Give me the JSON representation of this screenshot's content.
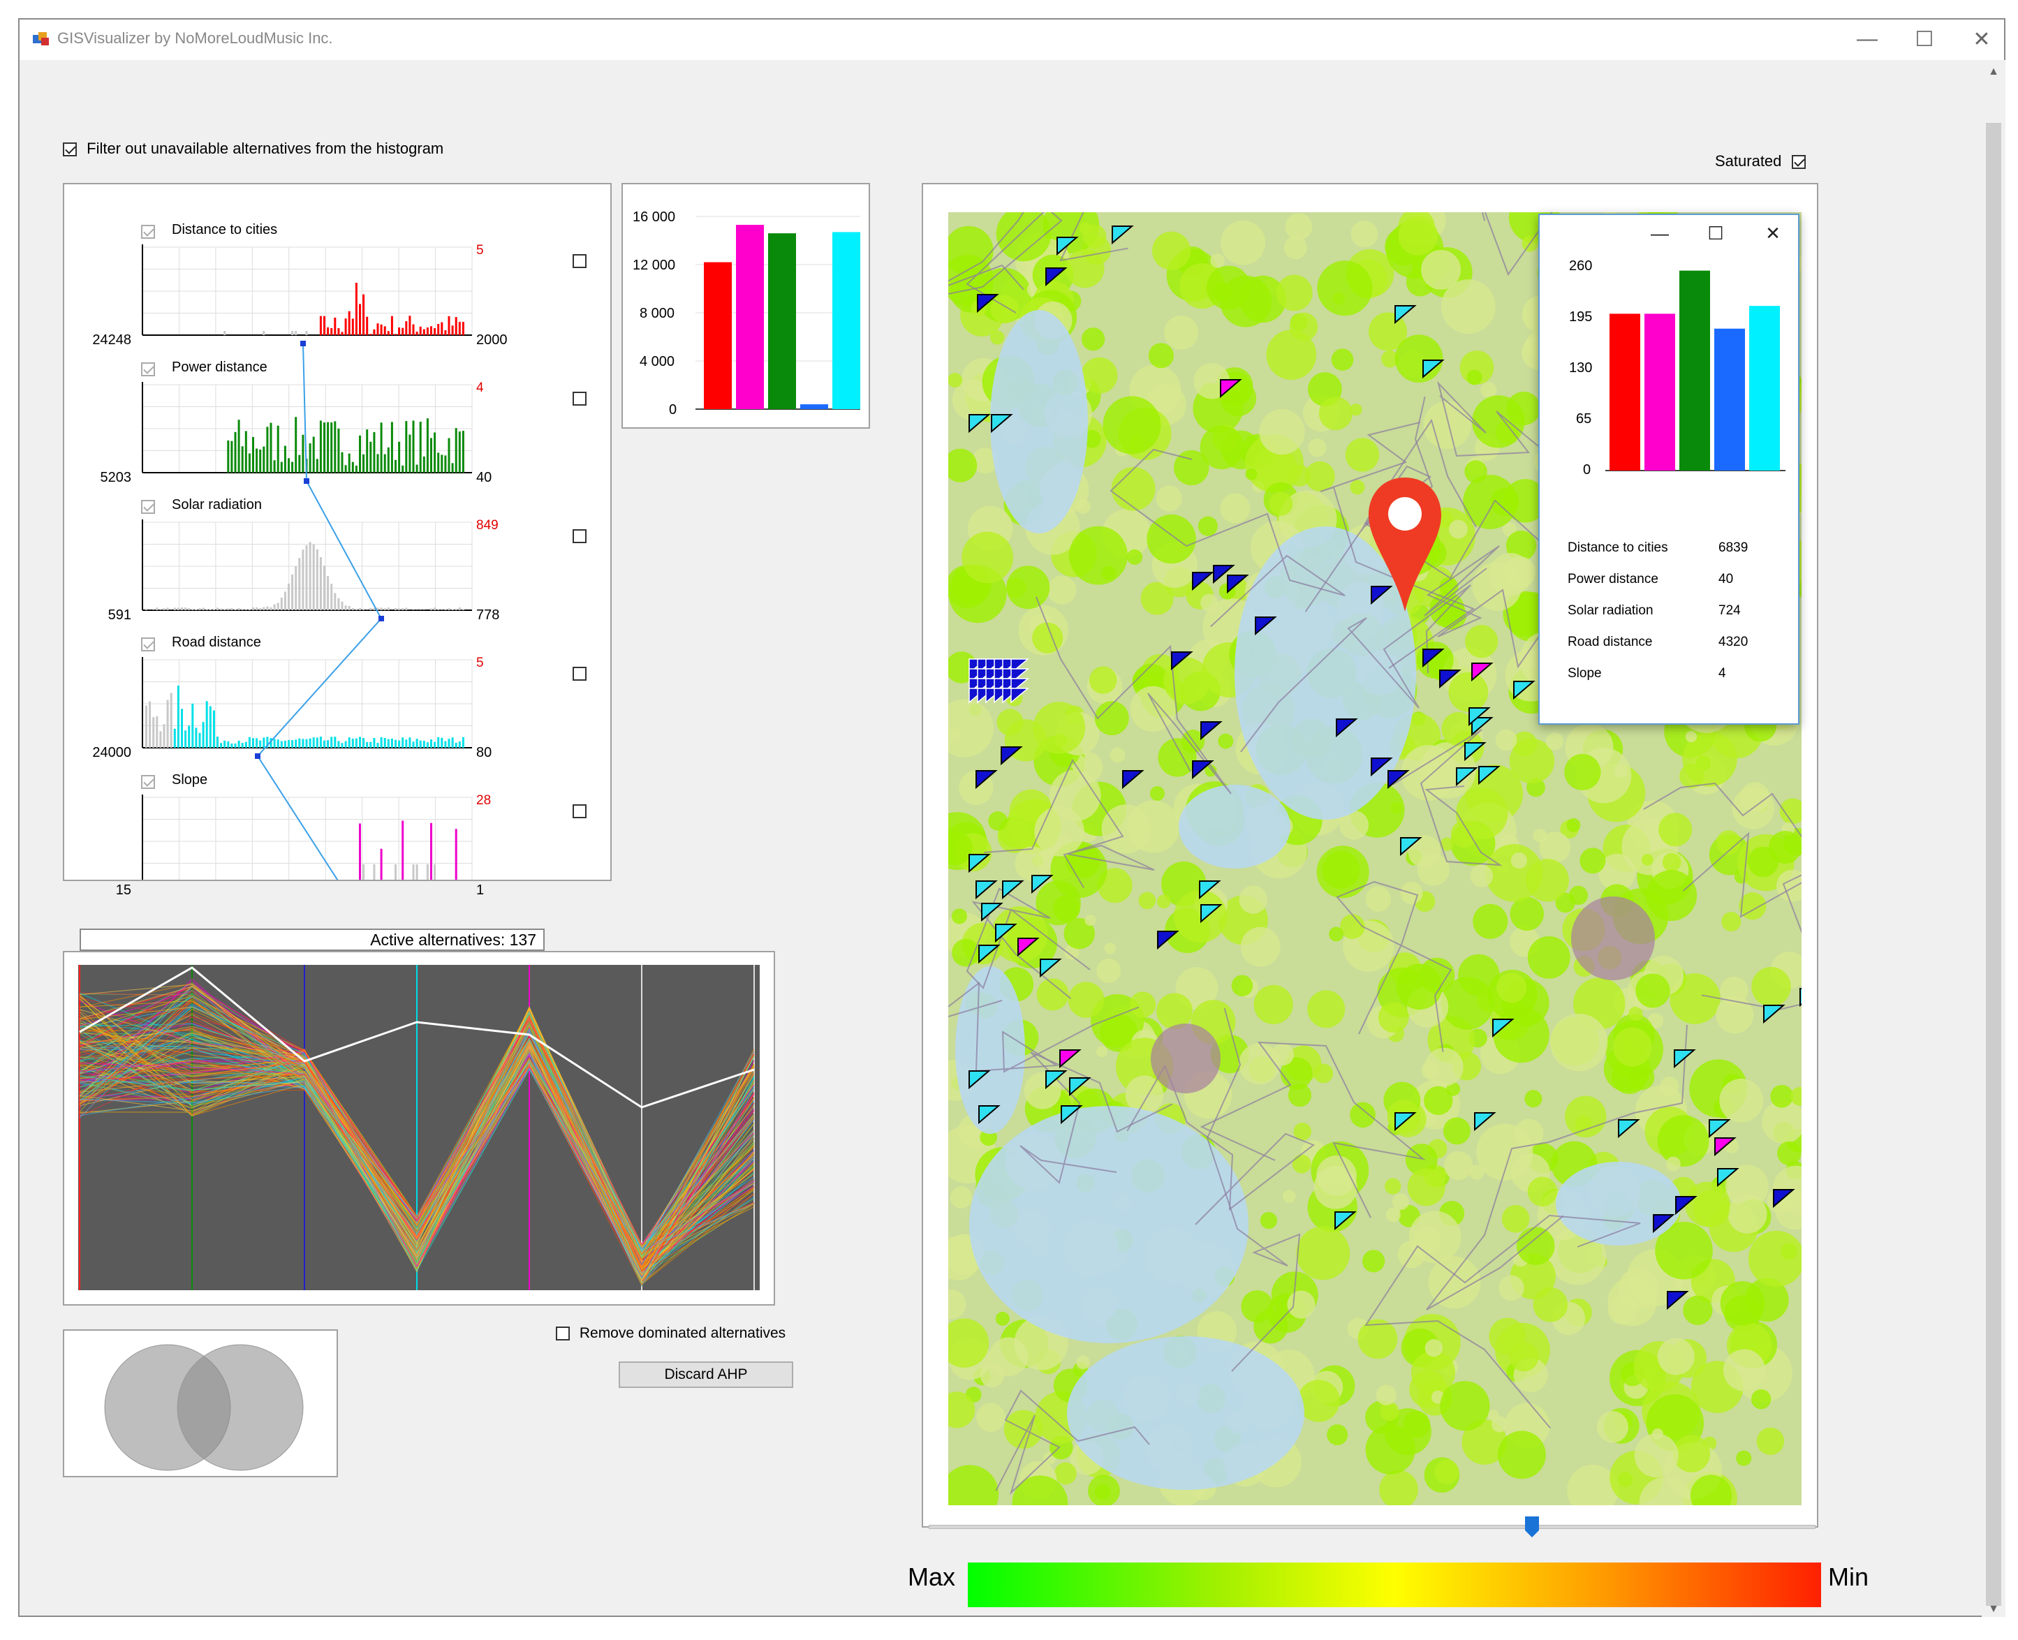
{
  "window": {
    "title": "GISVisualizer by NoMoreLoudMusic Inc.",
    "minimize_glyph": "—",
    "maximize_glyph": "☐",
    "close_glyph": "✕"
  },
  "filter": {
    "label": "Filter out unavailable alternatives from the histogram",
    "checked": true
  },
  "saturated": {
    "label": "Saturated",
    "checked": true
  },
  "histograms": [
    {
      "name": "Distance to cities",
      "left": "24248",
      "red": "5",
      "right": "2000",
      "color": "#ff0000",
      "included": false
    },
    {
      "name": "Power distance",
      "left": "5203",
      "red": "4",
      "right": "40",
      "color": "#0a8a0a",
      "included": false
    },
    {
      "name": "Solar radiation",
      "left": "591",
      "red": "849",
      "right": "778",
      "color": "#b0b0b0",
      "included": false
    },
    {
      "name": "Road distance",
      "left": "24000",
      "red": "5",
      "right": "80",
      "color": "#00e0e8",
      "included": false
    },
    {
      "name": "Slope",
      "left": "15",
      "red": "28",
      "right": "1",
      "color": "#ee00cc",
      "included": false
    }
  ],
  "summary_chart": {
    "yticks": [
      "16 000",
      "12 000",
      "8 000",
      "4 000",
      "0"
    ],
    "ymax": 16000,
    "values": [
      12200,
      15300,
      14600,
      400,
      14700
    ],
    "colors": [
      "#ff0000",
      "#ff00cc",
      "#0a8a0a",
      "#1a6aff",
      "#00f0ff"
    ]
  },
  "active_alternatives": "Active alternatives: 137",
  "remove_dominated": {
    "label": "Remove dominated alternatives",
    "checked": false
  },
  "discard_ahp": "Discard AHP",
  "popup": {
    "yticks": [
      "260",
      "195",
      "130",
      "65",
      "0"
    ],
    "ymax": 260,
    "values": [
      200,
      200,
      255,
      181,
      210
    ],
    "colors": [
      "#ff0000",
      "#ff00cc",
      "#0a8a0a",
      "#1a6aff",
      "#00f0ff"
    ],
    "attributes": [
      {
        "name": "Distance to cities",
        "value": "6839"
      },
      {
        "name": "Power distance",
        "value": "40"
      },
      {
        "name": "Solar radiation",
        "value": "724"
      },
      {
        "name": "Road distance",
        "value": "4320"
      },
      {
        "name": "Slope",
        "value": "4"
      }
    ],
    "minimize_glyph": "—",
    "maximize_glyph": "☐",
    "close_glyph": "✕"
  },
  "slider": {
    "position": 0.68
  },
  "legend": {
    "max_label": "Max",
    "min_label": "Min"
  }
}
